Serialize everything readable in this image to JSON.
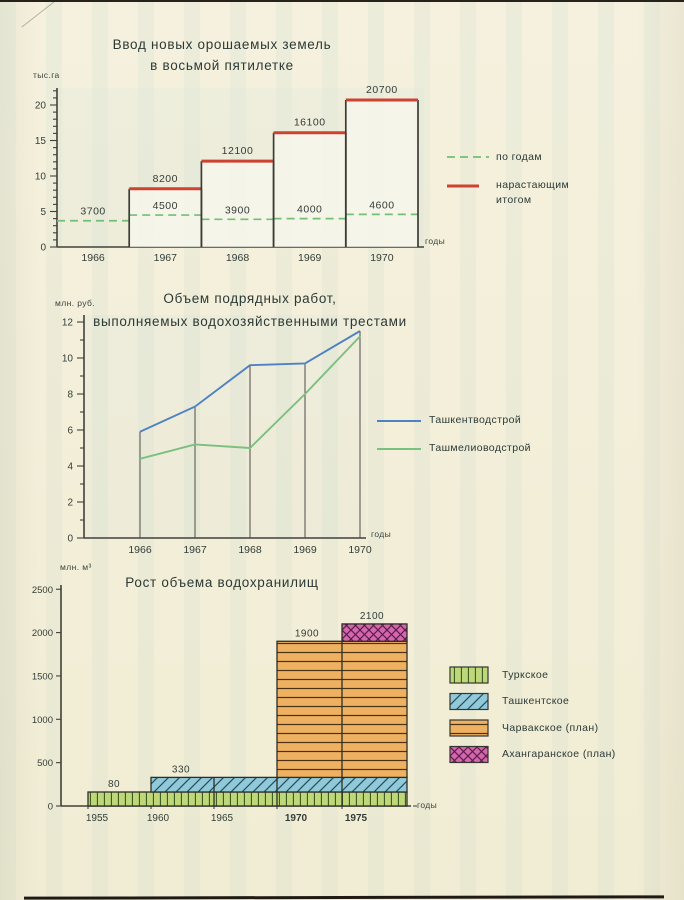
{
  "page": {
    "background": "#f3efdb",
    "ink": "#333d38"
  },
  "chart_data": [
    {
      "type": "bar",
      "title_lines": [
        "Ввод новых орошаемых земель",
        "в восьмой пятилетке"
      ],
      "y_axis_label": "тыс.га",
      "x_axis_label": "годы",
      "categories": [
        "1966",
        "1967",
        "1968",
        "1969",
        "1970"
      ],
      "ylim": [
        0,
        22
      ],
      "y_ticks": [
        0,
        5,
        10,
        15,
        20
      ],
      "value_unit_scale": 1000,
      "series": [
        {
          "name": "по годам",
          "style": "dashed-level",
          "color": "#72c076",
          "values": [
            3700,
            4500,
            3900,
            4000,
            4600
          ]
        },
        {
          "name": "нарастающим итогом",
          "style": "cumulative-bar",
          "color": "#cd4231",
          "values": [
            3700,
            8200,
            12100,
            16100,
            20700
          ],
          "first_bar_hidden": true
        }
      ]
    },
    {
      "type": "line",
      "title_lines": [
        "Объем подрядных работ,",
        "выполняемых водохозяйственными трестами"
      ],
      "y_axis_label": "млн. руб.",
      "x_axis_label": "годы",
      "x": [
        "1966",
        "1967",
        "1968",
        "1969",
        "1970"
      ],
      "ylim": [
        0,
        12
      ],
      "y_ticks": [
        0,
        2,
        4,
        6,
        8,
        10,
        12
      ],
      "drop_lines": true,
      "series": [
        {
          "name": "Ташкентводстрой",
          "color": "#4e82c3",
          "values": [
            5.9,
            7.3,
            9.6,
            9.7,
            11.5
          ]
        },
        {
          "name": "Ташмелиоводстрой",
          "color": "#7ac07f",
          "values": [
            4.4,
            5.2,
            5.0,
            8.0,
            11.2
          ]
        }
      ]
    },
    {
      "type": "stacked-step-bar",
      "title": "Рост объема водохранилищ",
      "y_axis_label": "млн. м³",
      "x_axis_label": "годы",
      "x_ticks": [
        "1955",
        "1960",
        "1965",
        "1970",
        "1975"
      ],
      "ylim": [
        0,
        2500
      ],
      "y_ticks": [
        0,
        500,
        1000,
        1500,
        2000,
        2500
      ],
      "segments": [
        {
          "name": "Туркское",
          "start_year": "1955",
          "cum_value": 80,
          "label": "80",
          "pattern": "vertical-green"
        },
        {
          "name": "Ташкентское",
          "start_year": "1960",
          "cum_value": 330,
          "label": "330",
          "pattern": "diagonal-blue"
        },
        {
          "name": "Чарвакское (план)",
          "start_year": "1970",
          "cum_value": 1900,
          "label": "1900",
          "pattern": "horizontal-orange"
        },
        {
          "name": "Ахангаранское (план)",
          "start_year": "1975",
          "cum_value": 2100,
          "label": "2100",
          "pattern": "cross-magenta"
        }
      ]
    }
  ]
}
